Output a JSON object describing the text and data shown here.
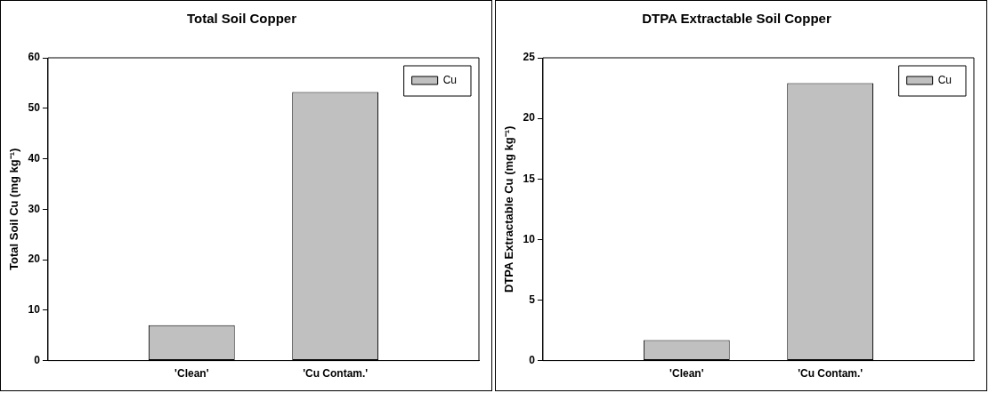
{
  "chart_data": [
    {
      "type": "bar",
      "title": "Total Soil Copper",
      "ylabel": "Total Soil Cu (mg kg⁻¹)",
      "categories": [
        "'Clean'",
        "'Cu Contam.'"
      ],
      "series": [
        {
          "name": "Cu",
          "color": "#c0c0c0",
          "values": [
            7.0,
            53.2
          ]
        }
      ],
      "ylim": [
        0,
        60
      ],
      "yticks": [
        0,
        10,
        20,
        30,
        40,
        50,
        60
      ],
      "grid": false,
      "legend": "top right"
    },
    {
      "type": "bar",
      "title": "DTPA Extractable Soil Copper",
      "ylabel": "DTPA Extractable Cu (mg kg⁻¹)",
      "categories": [
        "'Clean'",
        "'Cu Contam.'"
      ],
      "series": [
        {
          "name": "Cu",
          "color": "#c0c0c0",
          "values": [
            1.7,
            22.9
          ]
        }
      ],
      "ylim": [
        0,
        25
      ],
      "yticks": [
        0,
        5,
        10,
        15,
        20,
        25
      ],
      "grid": false,
      "legend": "top right"
    }
  ]
}
